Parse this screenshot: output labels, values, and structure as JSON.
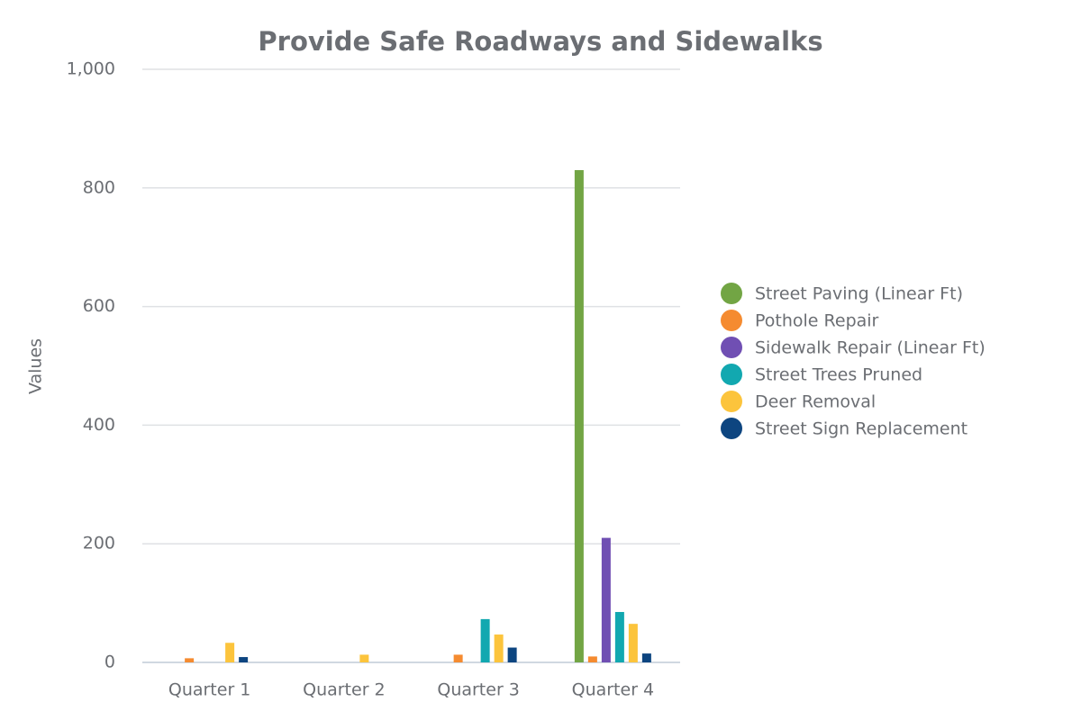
{
  "chart_data": {
    "type": "bar",
    "title": "Provide Safe Roadways and Sidewalks",
    "y_label": "Values",
    "categories": [
      "Quarter 1",
      "Quarter 2",
      "Quarter 3",
      "Quarter 4"
    ],
    "series": [
      {
        "name": "Street Paving (Linear Ft)",
        "color": "#72a544",
        "values": [
          0,
          0,
          0,
          830
        ]
      },
      {
        "name": "Pothole Repair",
        "color": "#f58b30",
        "values": [
          7,
          0,
          13,
          10
        ]
      },
      {
        "name": "Sidewalk Repair (Linear Ft)",
        "color": "#704fb3",
        "values": [
          0,
          0,
          0,
          210
        ]
      },
      {
        "name": "Street Trees Pruned",
        "color": "#12a8b0",
        "values": [
          0,
          0,
          73,
          85
        ]
      },
      {
        "name": "Deer Removal",
        "color": "#fcc43c",
        "values": [
          33,
          13,
          47,
          65
        ]
      },
      {
        "name": "Street Sign Replacement",
        "color": "#0d4580",
        "values": [
          9,
          0,
          25,
          15
        ]
      }
    ],
    "ylim": [
      0,
      1000
    ],
    "yticks": [
      0,
      200,
      400,
      600,
      800,
      {
        "value": 1000,
        "label": "1,000"
      }
    ],
    "grid": true,
    "legend": "right"
  }
}
